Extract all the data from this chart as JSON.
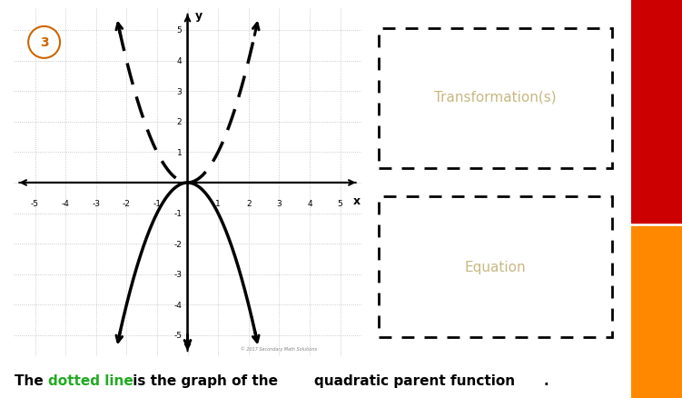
{
  "graph_xlim": [
    -5.7,
    5.7
  ],
  "graph_ylim": [
    -5.7,
    5.7
  ],
  "x_ticks": [
    -5,
    -4,
    -3,
    -2,
    -1,
    1,
    2,
    3,
    4,
    5
  ],
  "y_ticks": [
    -5,
    -4,
    -3,
    -2,
    -1,
    1,
    2,
    3,
    4,
    5
  ],
  "grid_color": "#bbbbbb",
  "background_color": "#ffffff",
  "number_label": "3",
  "number_circle_color": "#cc6600",
  "box1_text": "Transformation(s)",
  "box2_text": "Equation",
  "box_text_color": "#c8b882",
  "right_bar_colors": [
    "#cc0000",
    "#ff8800"
  ],
  "side_bg_color": "#d4d9c4",
  "copyright_text": "© 2017 Secondary Math Solutions",
  "bottom_text_green_color": "#22aa22"
}
